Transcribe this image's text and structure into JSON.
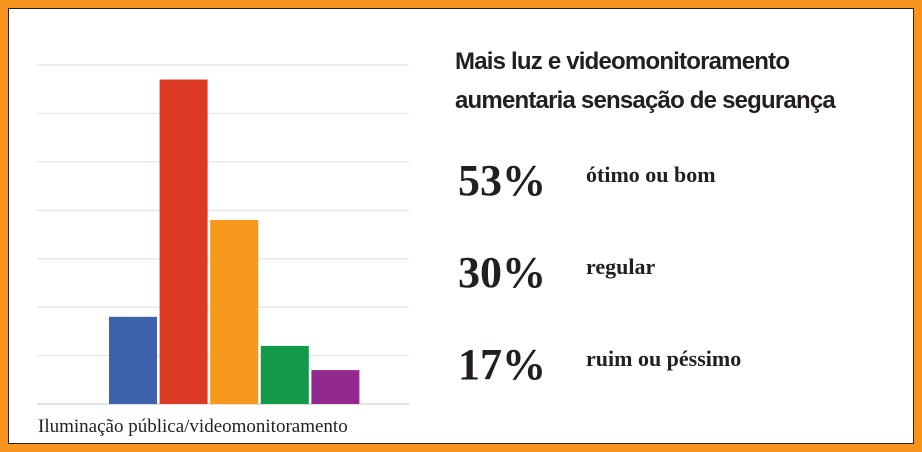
{
  "chart_data": {
    "type": "bar",
    "categories": [
      null,
      null,
      null,
      null,
      null
    ],
    "values": [
      18,
      67,
      38,
      12,
      7
    ],
    "colors": [
      "#3f62ad",
      "#dc3c26",
      "#f8991d",
      "#13994a",
      "#922a8e"
    ],
    "ylim": [
      0,
      70
    ],
    "yticks": [
      0,
      10,
      20,
      30,
      40,
      50,
      60,
      70
    ],
    "grid": true,
    "x_label": "Iluminação pública/videomonitoramento"
  },
  "panel": {
    "title": "Mais luz e videomonitoramento aumentaria sensação de segurança",
    "stats": {
      "values": [
        53,
        30,
        17
      ],
      "value_labels": [
        "53%",
        "30%",
        "17%"
      ],
      "labels": [
        "ótimo ou bom",
        "regular",
        "ruim ou péssimo"
      ]
    }
  }
}
